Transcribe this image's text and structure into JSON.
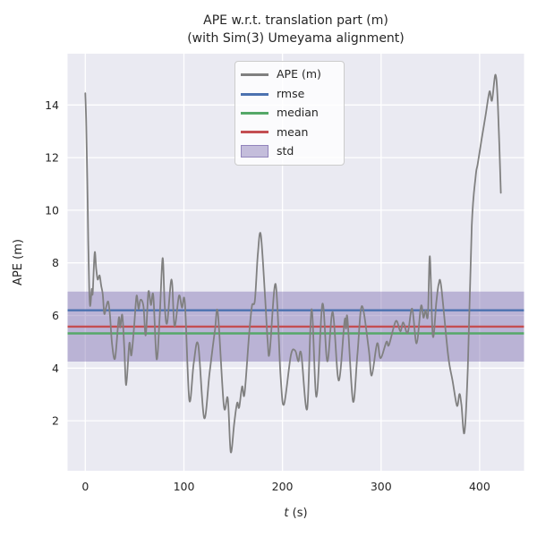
{
  "title": {
    "line1": "APE w.r.t. translation part (m)",
    "line2": "(with Sim(3) Umeyama alignment)"
  },
  "axes": {
    "xlabel_variable": "t",
    "xlabel_unit": " (s)",
    "ylabel": "APE (m)"
  },
  "legend": {
    "items": [
      {
        "label": "APE (m)",
        "type": "line",
        "color": "#808080"
      },
      {
        "label": "rmse",
        "type": "line",
        "color": "#4C72B0"
      },
      {
        "label": "median",
        "type": "line",
        "color": "#55A868"
      },
      {
        "label": "mean",
        "type": "line",
        "color": "#C44E52"
      },
      {
        "label": "std",
        "type": "patch",
        "color": "#8172B2"
      }
    ]
  },
  "colors": {
    "ape_line": "#808080",
    "rmse": "#4C72B0",
    "median": "#55A868",
    "mean": "#C44E52",
    "std_band": "#8172B2",
    "std_band_opacity": 0.45,
    "axes_background": "#EAEAF2",
    "grid": "#FFFFFF",
    "text": "#262626"
  },
  "chart_data": {
    "type": "line",
    "title": "APE w.r.t. translation part (m)\n(with Sim(3) Umeyama alignment)",
    "xlabel": "t (s)",
    "ylabel": "APE (m)",
    "xlim": [
      -18,
      445
    ],
    "ylim": [
      0.1,
      15.95
    ],
    "xticks": [
      0,
      100,
      200,
      300,
      400
    ],
    "yticks": [
      2,
      4,
      6,
      8,
      10,
      12,
      14
    ],
    "grid": true,
    "legend_position": "upper center",
    "stats": {
      "rmse": 6.2,
      "mean": 5.58,
      "median": 5.32,
      "std": 1.33,
      "std_band": [
        4.25,
        6.91
      ]
    },
    "series": [
      {
        "name": "APE (m)",
        "points": [
          [
            0,
            14.45
          ],
          [
            1,
            13.2
          ],
          [
            2,
            11.2
          ],
          [
            3,
            8.8
          ],
          [
            4,
            7.0
          ],
          [
            5,
            6.36
          ],
          [
            6.5,
            7.0
          ],
          [
            7.5,
            6.85
          ],
          [
            9.5,
            8.39
          ],
          [
            11,
            7.8
          ],
          [
            12.5,
            7.37
          ],
          [
            14.5,
            7.52
          ],
          [
            16,
            7.15
          ],
          [
            17.7,
            6.81
          ],
          [
            19.2,
            6.07
          ],
          [
            21,
            6.3
          ],
          [
            23.2,
            6.53
          ],
          [
            25,
            6.0
          ],
          [
            27.2,
            4.89
          ],
          [
            30.2,
            4.38
          ],
          [
            33.9,
            5.9
          ],
          [
            35.5,
            5.55
          ],
          [
            37.5,
            6.02
          ],
          [
            39.5,
            4.8
          ],
          [
            41.5,
            3.36
          ],
          [
            44.6,
            4.94
          ],
          [
            46.7,
            4.49
          ],
          [
            49.5,
            5.6
          ],
          [
            52,
            6.75
          ],
          [
            54,
            6.25
          ],
          [
            56,
            6.6
          ],
          [
            59,
            6.35
          ],
          [
            61.3,
            5.25
          ],
          [
            64,
            6.9
          ],
          [
            66.5,
            6.4
          ],
          [
            69,
            6.75
          ],
          [
            72.3,
            4.34
          ],
          [
            75.5,
            6.0
          ],
          [
            78.4,
            8.18
          ],
          [
            80.5,
            6.4
          ],
          [
            83,
            5.72
          ],
          [
            87.5,
            7.37
          ],
          [
            90.5,
            5.6
          ],
          [
            95,
            6.75
          ],
          [
            98,
            6.3
          ],
          [
            101,
            6.47
          ],
          [
            105.5,
            2.79
          ],
          [
            110,
            4.2
          ],
          [
            114.5,
            4.89
          ],
          [
            120.5,
            2.11
          ],
          [
            126,
            3.8
          ],
          [
            131.5,
            5.45
          ],
          [
            134.5,
            6.07
          ],
          [
            140.5,
            2.57
          ],
          [
            144.5,
            2.85
          ],
          [
            147.5,
            0.81
          ],
          [
            151,
            1.9
          ],
          [
            154,
            2.68
          ],
          [
            156,
            2.5
          ],
          [
            159,
            3.3
          ],
          [
            161.5,
            3.02
          ],
          [
            166,
            5.22
          ],
          [
            169,
            6.36
          ],
          [
            172,
            6.58
          ],
          [
            175,
            8.34
          ],
          [
            178,
            9.07
          ],
          [
            182.5,
            6.58
          ],
          [
            185,
            5.0
          ],
          [
            187,
            4.6
          ],
          [
            193,
            7.2
          ],
          [
            198,
            3.75
          ],
          [
            201.5,
            2.62
          ],
          [
            208.5,
            4.49
          ],
          [
            213,
            4.66
          ],
          [
            216,
            4.26
          ],
          [
            219,
            4.55
          ],
          [
            225,
            2.45
          ],
          [
            229.5,
            6.24
          ],
          [
            234.5,
            2.91
          ],
          [
            240.5,
            6.44
          ],
          [
            245.5,
            4.26
          ],
          [
            251,
            6.13
          ],
          [
            257,
            3.53
          ],
          [
            263,
            5.8
          ],
          [
            264.5,
            5.5
          ],
          [
            266,
            5.87
          ],
          [
            271.5,
            2.74
          ],
          [
            276,
            4.5
          ],
          [
            280.5,
            6.36
          ],
          [
            287.5,
            4.72
          ],
          [
            290.5,
            3.72
          ],
          [
            296,
            4.94
          ],
          [
            299.5,
            4.38
          ],
          [
            305.5,
            5.0
          ],
          [
            308,
            4.88
          ],
          [
            315,
            5.79
          ],
          [
            319.5,
            5.4
          ],
          [
            322.5,
            5.74
          ],
          [
            327,
            5.34
          ],
          [
            331.5,
            6.26
          ],
          [
            336,
            4.94
          ],
          [
            340.5,
            6.36
          ],
          [
            343,
            5.92
          ],
          [
            345,
            6.2
          ],
          [
            347.5,
            6.0
          ],
          [
            349.5,
            8.25
          ],
          [
            352.5,
            5.22
          ],
          [
            356,
            6.5
          ],
          [
            358.5,
            7.2
          ],
          [
            361,
            7.1
          ],
          [
            368,
            4.49
          ],
          [
            372.5,
            3.53
          ],
          [
            377,
            2.57
          ],
          [
            379.5,
            3.02
          ],
          [
            381.5,
            2.6
          ],
          [
            384.5,
            1.55
          ],
          [
            388,
            4.0
          ],
          [
            392,
            9.4
          ],
          [
            396,
            11.3
          ],
          [
            398,
            11.75
          ],
          [
            402,
            12.7
          ],
          [
            406,
            13.6
          ],
          [
            410,
            14.51
          ],
          [
            412.5,
            14.17
          ],
          [
            416,
            15.15
          ],
          [
            418.5,
            14.0
          ],
          [
            421.5,
            10.66
          ]
        ]
      }
    ]
  }
}
